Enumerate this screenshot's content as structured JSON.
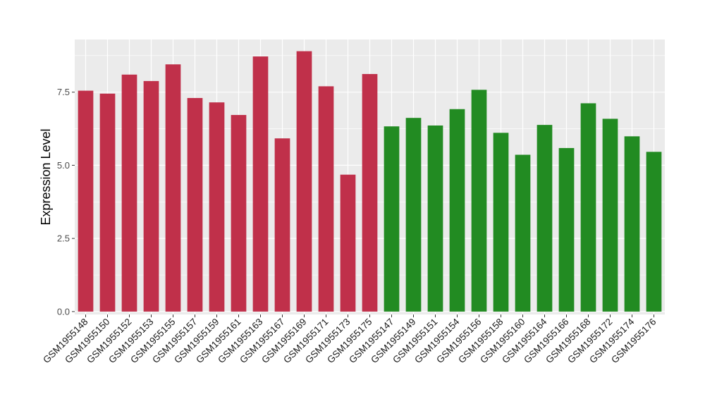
{
  "chart_data": {
    "type": "bar",
    "ylabel": "Expression Level",
    "xlabel": "",
    "ylim": [
      -0.1,
      9.3
    ],
    "yticks": [
      0.0,
      2.5,
      5.0,
      7.5
    ],
    "ytick_labels": [
      "0.0",
      "2.5",
      "5.0",
      "7.5"
    ],
    "grid": true,
    "legend": "none",
    "colors": {
      "group1": "#C0304A",
      "group2": "#228B22",
      "panel": "#EBEBEB",
      "gridline": "#FFFFFF"
    },
    "categories": [
      "GSM1955148",
      "GSM1955150",
      "GSM1955152",
      "GSM1955153",
      "GSM1955155",
      "GSM1955157",
      "GSM1955159",
      "GSM1955161",
      "GSM1955163",
      "GSM1955167",
      "GSM1955169",
      "GSM1955171",
      "GSM1955173",
      "GSM1955175",
      "GSM1955147",
      "GSM1955149",
      "GSM1955151",
      "GSM1955154",
      "GSM1955156",
      "GSM1955158",
      "GSM1955160",
      "GSM1955164",
      "GSM1955166",
      "GSM1955168",
      "GSM1955172",
      "GSM1955174",
      "GSM1955176"
    ],
    "values": [
      7.55,
      7.45,
      8.1,
      7.88,
      8.45,
      7.3,
      7.15,
      6.72,
      8.72,
      5.92,
      8.9,
      7.7,
      4.68,
      8.12,
      6.33,
      6.62,
      6.36,
      6.92,
      7.58,
      6.11,
      5.36,
      6.38,
      5.59,
      7.12,
      6.59,
      5.99,
      5.46
    ],
    "bar_groups": [
      1,
      1,
      1,
      1,
      1,
      1,
      1,
      1,
      1,
      1,
      1,
      1,
      1,
      1,
      2,
      2,
      2,
      2,
      2,
      2,
      2,
      2,
      2,
      2,
      2,
      2,
      2
    ]
  }
}
